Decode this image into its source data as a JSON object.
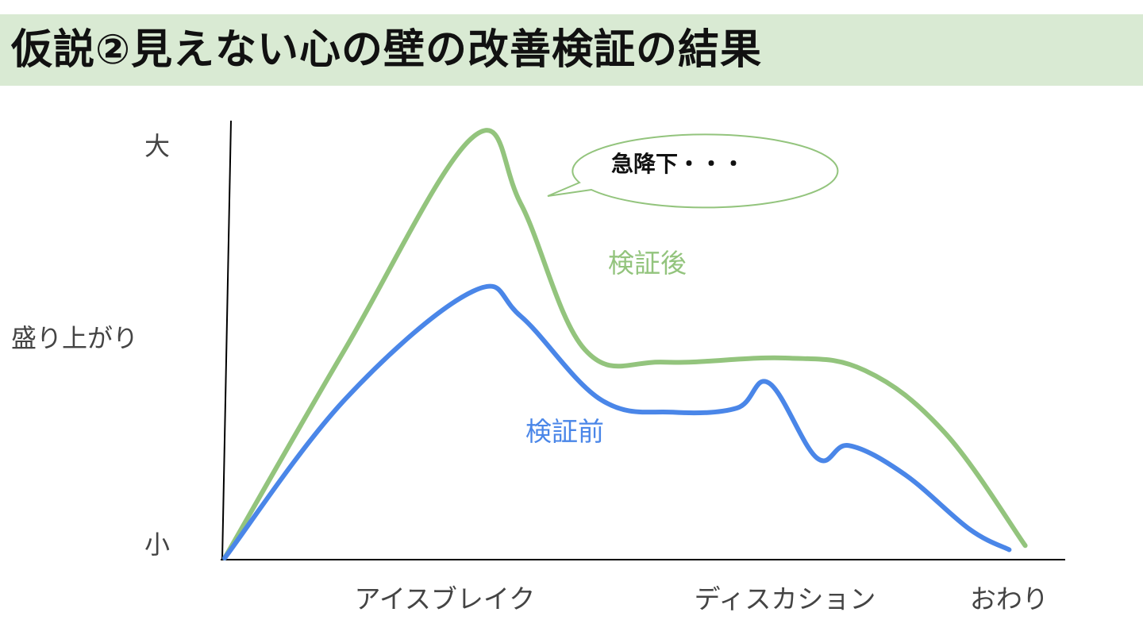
{
  "header": {
    "title": "仮説②見えない心の壁の改善検証の結果",
    "banner_color": "#d9ead3"
  },
  "chart_data": {
    "type": "line",
    "title": "仮説②見えない心の壁の改善検証の結果",
    "ylabel": "盛り上がり",
    "y_ticks": [
      {
        "label": "大",
        "value": 1.0
      },
      {
        "label": "小",
        "value": 0.0
      }
    ],
    "ylim": [
      0,
      1.05
    ],
    "x_ticks": [
      {
        "label": "アイスブレイク",
        "value": 0.275
      },
      {
        "label": "ディスカション",
        "value": 0.7
      },
      {
        "label": "おわり",
        "value": 0.98
      }
    ],
    "xlim": [
      0,
      1.05
    ],
    "grid": false,
    "legend": "inline labels",
    "series": [
      {
        "name": "検証後",
        "color": "#93c47d",
        "x": [
          0.0,
          0.15,
          0.31,
          0.37,
          0.45,
          0.55,
          0.7,
          0.8,
          0.9,
          1.0
        ],
        "y": [
          0.0,
          0.5,
          1.01,
          0.85,
          0.5,
          0.47,
          0.48,
          0.45,
          0.3,
          0.03
        ]
      },
      {
        "name": "検証前",
        "color": "#4a86e8",
        "x": [
          0.0,
          0.15,
          0.31,
          0.37,
          0.47,
          0.56,
          0.64,
          0.68,
          0.74,
          0.78,
          0.85,
          0.93,
          0.98
        ],
        "y": [
          0.0,
          0.38,
          0.64,
          0.58,
          0.38,
          0.35,
          0.36,
          0.42,
          0.24,
          0.27,
          0.2,
          0.07,
          0.02
        ]
      }
    ],
    "annotations": [
      {
        "text": "急降下・・・",
        "shape": "speech-bubble",
        "series": "検証後"
      }
    ]
  }
}
